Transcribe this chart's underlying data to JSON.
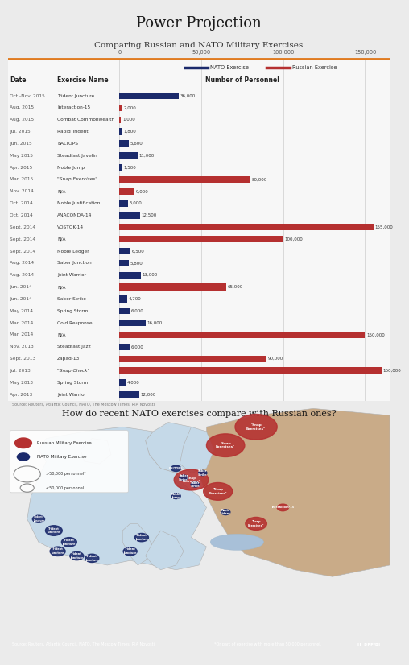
{
  "title": "Power Projection",
  "subtitle": "Comparing Russian and NATO Military Exercises",
  "bg_color": "#ebebeb",
  "chart_bg": "#f7f7f7",
  "nato_color": "#1b2a6b",
  "russian_color": "#b53030",
  "orange_color": "#e07b20",
  "header_line_color": "#e07b20",
  "exercises": [
    {
      "date": "Oct.-Nov. 2015",
      "name": "Trident Juncture",
      "type": "NATO",
      "personnel": 36000
    },
    {
      "date": "Aug. 2015",
      "name": "Interaction-15",
      "type": "Russian",
      "personnel": 2000
    },
    {
      "date": "Aug. 2015",
      "name": "Combat Commonwealth",
      "type": "Russian",
      "personnel": 1000
    },
    {
      "date": "Jul. 2015",
      "name": "Rapid Trident",
      "type": "NATO",
      "personnel": 1800
    },
    {
      "date": "Jun. 2015",
      "name": "BALTOPS",
      "type": "NATO",
      "personnel": 5600
    },
    {
      "date": "May 2015",
      "name": "Steadfast Javelin",
      "type": "NATO",
      "personnel": 11000
    },
    {
      "date": "Apr. 2015",
      "name": "Noble Jump",
      "type": "NATO",
      "personnel": 1500
    },
    {
      "date": "Mar. 2015",
      "name": "\"Snap Exercises\"",
      "type": "Russian",
      "personnel": 80000
    },
    {
      "date": "Nov. 2014",
      "name": "N/A",
      "type": "Russian",
      "personnel": 9000
    },
    {
      "date": "Oct. 2014",
      "name": "Noble Justification",
      "type": "NATO",
      "personnel": 5000
    },
    {
      "date": "Oct. 2014",
      "name": "ANACONDA-14",
      "type": "NATO",
      "personnel": 12500
    },
    {
      "date": "Sept. 2014",
      "name": "VOSTOK-14",
      "type": "Russian",
      "personnel": 155000
    },
    {
      "date": "Sept. 2014",
      "name": "N/A",
      "type": "Russian",
      "personnel": 100000
    },
    {
      "date": "Sept. 2014",
      "name": "Noble Ledger",
      "type": "NATO",
      "personnel": 6500
    },
    {
      "date": "Aug. 2014",
      "name": "Saber Junction",
      "type": "NATO",
      "personnel": 5800
    },
    {
      "date": "Aug. 2014",
      "name": "Joint Warrior",
      "type": "NATO",
      "personnel": 13000
    },
    {
      "date": "Jun. 2014",
      "name": "N/A",
      "type": "Russian",
      "personnel": 65000
    },
    {
      "date": "Jun. 2014",
      "name": "Saber Strike",
      "type": "NATO",
      "personnel": 4700
    },
    {
      "date": "May 2014",
      "name": "Spring Storm",
      "type": "NATO",
      "personnel": 6000
    },
    {
      "date": "Mar. 2014",
      "name": "Cold Response",
      "type": "NATO",
      "personnel": 16000
    },
    {
      "date": "Mar. 2014",
      "name": "N/A",
      "type": "Russian",
      "personnel": 150000
    },
    {
      "date": "Nov. 2013",
      "name": "Steadfast Jazz",
      "type": "NATO",
      "personnel": 6000
    },
    {
      "date": "Sept. 2013",
      "name": "Zapad-13",
      "type": "Russian",
      "personnel": 90000
    },
    {
      "date": "Jul. 2013",
      "name": "\"Snap Check\"",
      "type": "Russian",
      "personnel": 160000
    },
    {
      "date": "May 2013",
      "name": "Spring Storm",
      "type": "NATO",
      "personnel": 4000
    },
    {
      "date": "Apr. 2013",
      "name": "Joint Warrior",
      "type": "NATO",
      "personnel": 12000
    }
  ],
  "xmax": 165000,
  "xticks": [
    0,
    50000,
    100000,
    150000
  ],
  "xtick_labels": [
    "0",
    "50,000",
    "100,000",
    "150,000"
  ],
  "source_text": "Source: Reuters, Atlantic Council, NATO, The Moscow Times, RIA Novosti",
  "map_question": "How do recent NATO exercises compare with Russian ones?",
  "map_source": "Source: Reuters, Atlantic Council, NATO, The Moscow Times, RIA Novosti",
  "map_footnote": "*Or part of exercise with more than 50,000 personnel.",
  "footer_bg": "#666666",
  "map_sea_color": "#b8cfe0",
  "map_europe_color": "#c5d9e8",
  "map_russia_color": "#c9ab88",
  "map_land_color": "#d5e3ec"
}
